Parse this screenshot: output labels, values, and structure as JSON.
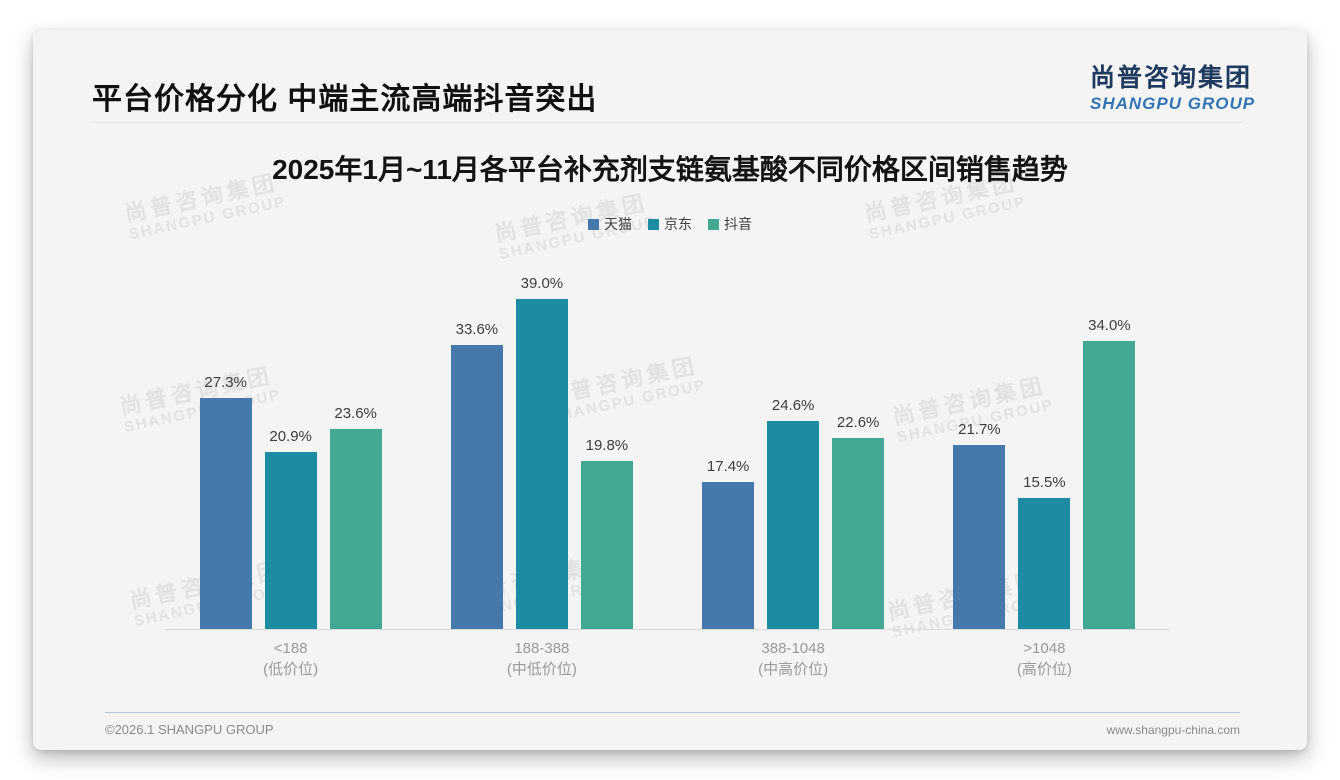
{
  "slide": {
    "title": "平台价格分化 中端主流高端抖音突出",
    "logo": {
      "cn": "尚普咨询集团",
      "en": "SHANGPU GROUP"
    },
    "watermark": {
      "cn": "尚普咨询集团",
      "en": "SHANGPU GROUP"
    },
    "footer": {
      "left": "©2026.1 SHANGPU GROUP",
      "right": "www.shangpu-china.com"
    }
  },
  "chart_data": {
    "type": "bar",
    "title": "2025年1月~11月各平台补充剂支链氨基酸不同价格区间销售趋势",
    "categories": [
      {
        "label": "<188",
        "sub": "(低价位)"
      },
      {
        "label": "188-388",
        "sub": "(中低价位)"
      },
      {
        "label": "388-1048",
        "sub": "(中高价位)"
      },
      {
        "label": ">1048",
        "sub": "(高价位)"
      }
    ],
    "series": [
      {
        "name": "天猫",
        "color": "#4578ab",
        "values": [
          27.3,
          33.6,
          17.4,
          21.7
        ]
      },
      {
        "name": "京东",
        "color": "#1d8ba2",
        "values": [
          20.9,
          39.0,
          24.6,
          15.5
        ]
      },
      {
        "name": "抖音",
        "color": "#42a893",
        "values": [
          23.6,
          19.8,
          22.6,
          34.0
        ]
      }
    ],
    "value_suffix": "%",
    "xlabel": "",
    "ylabel": "",
    "ylim": [
      0,
      39
    ],
    "grid": false,
    "legend_position": "top",
    "colors": {
      "tmall_blue": "#4578ab",
      "jd_teal": "#1d8ba2",
      "douyin_green": "#42a893"
    }
  }
}
